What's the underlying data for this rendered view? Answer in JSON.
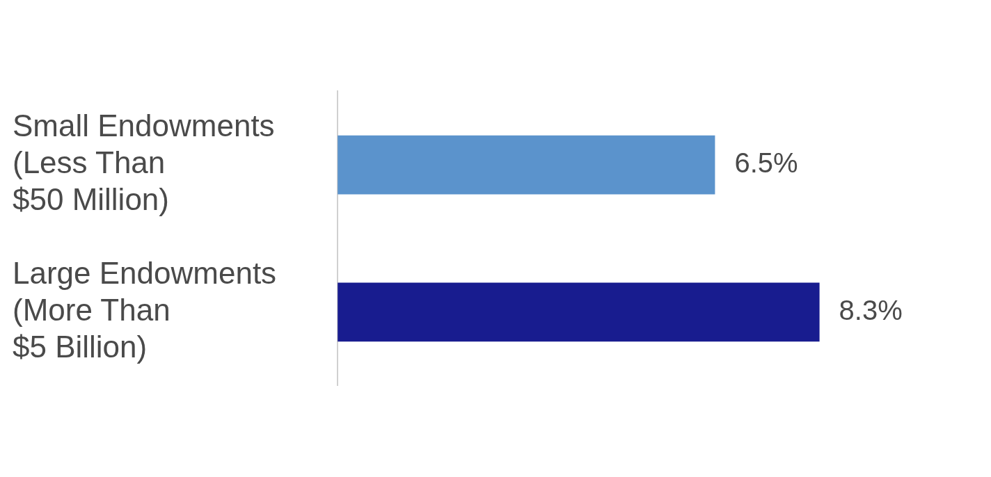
{
  "chart_data": {
    "type": "bar",
    "orientation": "horizontal",
    "categories": [
      "Small Endowments (Less Than $50 Million)",
      "Large Endowments (More Than $5 Billion)"
    ],
    "values": [
      6.5,
      8.3
    ],
    "colors": [
      "#5b93cc",
      "#181c8f"
    ],
    "value_labels": [
      "6.5%",
      "8.3%"
    ],
    "grid": false,
    "legend": false
  }
}
